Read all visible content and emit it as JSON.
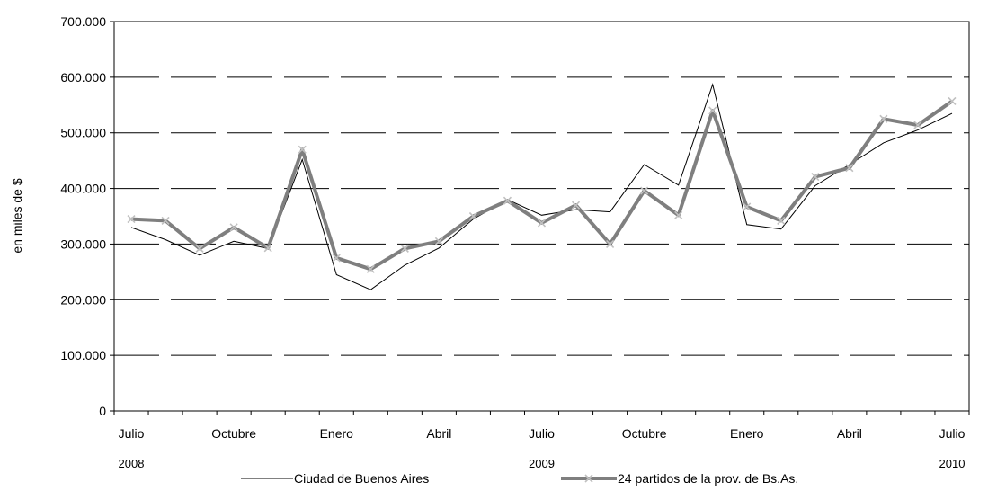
{
  "chart_data": {
    "type": "line",
    "title": "",
    "ylabel": "en miles de $",
    "ylim": [
      0,
      700000
    ],
    "y_ticks": [
      0,
      100000,
      200000,
      300000,
      400000,
      500000,
      600000,
      700000
    ],
    "y_tick_labels": [
      "0",
      "100.000",
      "200.000",
      "300.000",
      "400.000",
      "500.000",
      "600.000",
      "700.000"
    ],
    "grid": "horizontal dashed",
    "x_month_labels": [
      {
        "index": 0,
        "label": "Julio"
      },
      {
        "index": 3,
        "label": "Octubre"
      },
      {
        "index": 6,
        "label": "Enero"
      },
      {
        "index": 9,
        "label": "Abril"
      },
      {
        "index": 12,
        "label": "Julio"
      },
      {
        "index": 15,
        "label": "Octubre"
      },
      {
        "index": 18,
        "label": "Enero"
      },
      {
        "index": 21,
        "label": "Abril"
      },
      {
        "index": 24,
        "label": "Julio"
      }
    ],
    "x_year_labels": [
      {
        "index": 0,
        "label": "2008"
      },
      {
        "index": 12,
        "label": "2009"
      },
      {
        "index": 24,
        "label": "2010"
      }
    ],
    "legend_position": "bottom",
    "series": [
      {
        "name": "Ciudad de Buenos Aires",
        "color": "#000000",
        "values": [
          330000,
          308000,
          280000,
          305000,
          292000,
          452000,
          245000,
          218000,
          262000,
          293000,
          345000,
          380000,
          352000,
          362000,
          358000,
          443000,
          406000,
          587000,
          335000,
          327000,
          405000,
          443000,
          482000,
          505000,
          535000
        ]
      },
      {
        "name": "24 partidos de la prov. de Bs.As.",
        "color": "#7f7f7f",
        "marker_color": "#c0c0c0",
        "values": [
          345000,
          342000,
          292000,
          330000,
          293000,
          470000,
          275000,
          255000,
          292000,
          305000,
          350000,
          378000,
          338000,
          370000,
          300000,
          396000,
          352000,
          540000,
          367000,
          342000,
          421000,
          437000,
          525000,
          514000,
          557000
        ]
      }
    ]
  }
}
